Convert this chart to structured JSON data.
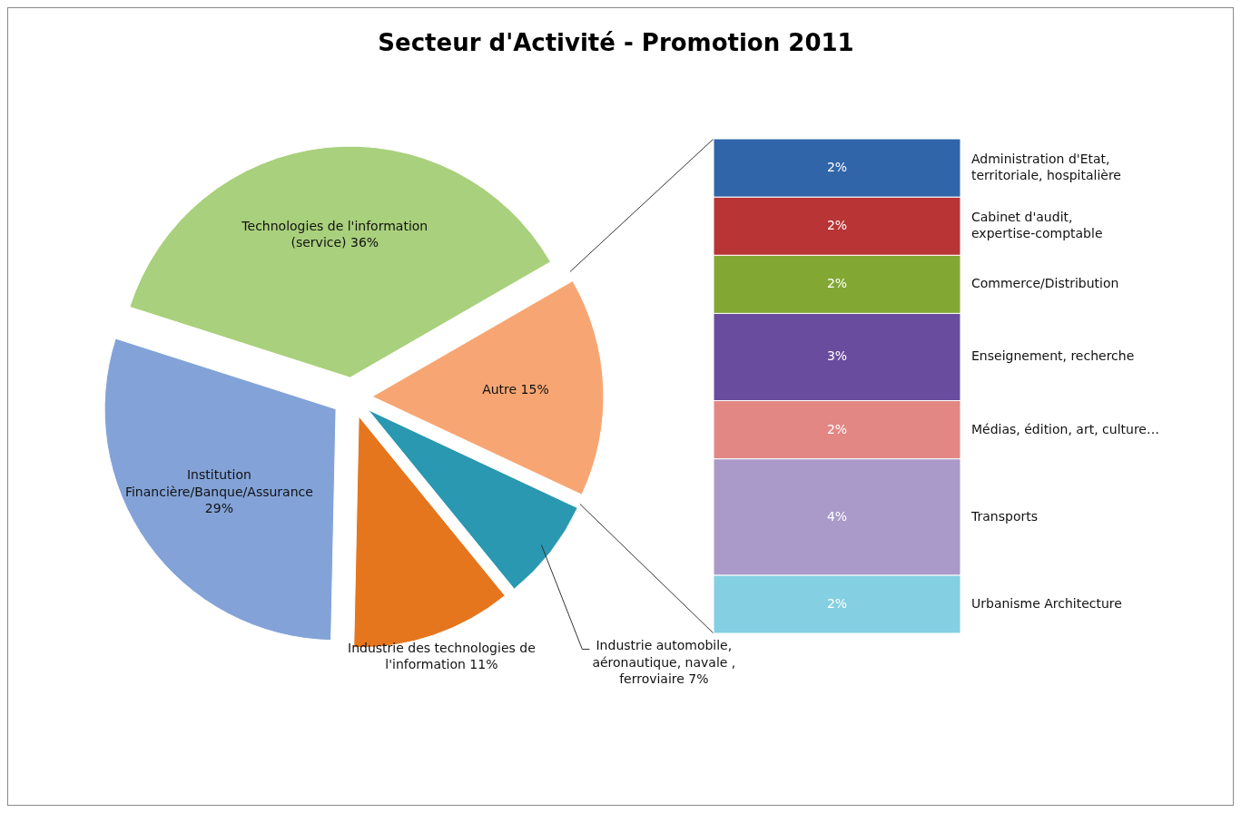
{
  "chart_data": [
    {
      "type": "pie",
      "title": "Secteur d'Activité - Promotion 2011",
      "categories": [
        "Autre",
        "Industrie automobile, aéronautique, navale , ferroviaire",
        "Industrie des technologies de l'information",
        "Institution Financière/Banque/Assurance",
        "Technologies de l'information (service)"
      ],
      "values": [
        15,
        7,
        11,
        29,
        36
      ],
      "value_labels": [
        "15%",
        "7%",
        "11%",
        "29%",
        "36%"
      ],
      "colors": [
        "#f7a673",
        "#2a98b0",
        "#e5761d",
        "#83a3d8",
        "#a9d07c"
      ]
    },
    {
      "type": "bar",
      "stacked": true,
      "categories": [
        null
      ],
      "series": [
        {
          "name": "Urbanisme Architecture",
          "color": "#84cfe2",
          "values": [
            2
          ],
          "value_labels": [
            "2%"
          ]
        },
        {
          "name": "Transports",
          "color": "#a99ac9",
          "values": [
            4
          ],
          "value_labels": [
            "4%"
          ]
        },
        {
          "name": "Médias, édition, art, culture…",
          "color": "#e28784",
          "values": [
            2
          ],
          "value_labels": [
            "2%"
          ]
        },
        {
          "name": "Enseignement, recherche",
          "color": "#6a4c9f",
          "values": [
            3
          ],
          "value_labels": [
            "3%"
          ]
        },
        {
          "name": "Commerce/Distribution",
          "color": "#82a833",
          "values": [
            2
          ],
          "value_labels": [
            "2%"
          ]
        },
        {
          "name": "Cabinet d'audit, expertise-comptable",
          "color": "#b93434",
          "values": [
            2
          ],
          "value_labels": [
            "2%"
          ]
        },
        {
          "name": "Administration d'Etat, territoriale, hospitalière",
          "color": "#3065aa",
          "values": [
            2
          ],
          "value_labels": [
            "2%"
          ]
        }
      ]
    }
  ]
}
